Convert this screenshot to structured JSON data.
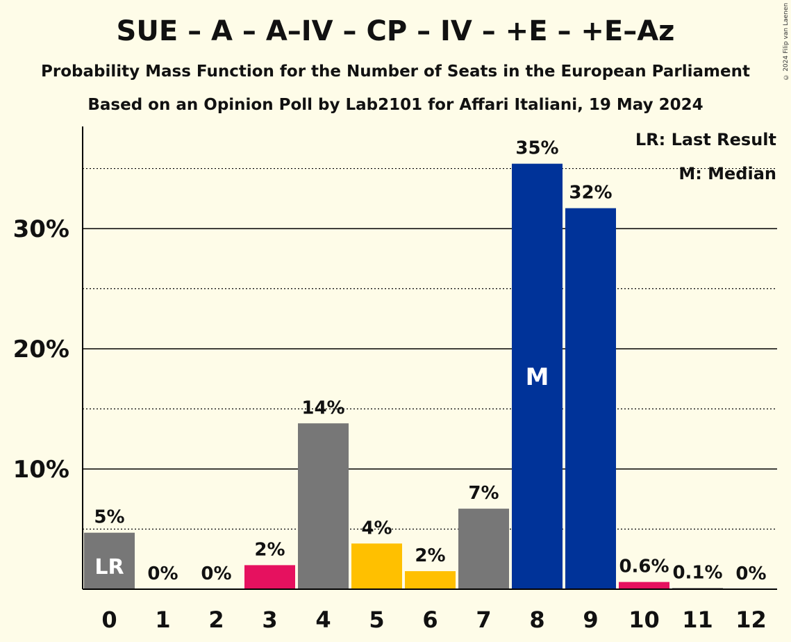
{
  "title": "SUE – A – A–IV – CP – IV – +E – +E–Az",
  "subtitle": "Probability Mass Function for the Number of Seats in the European Parliament",
  "subtitle2": "Based on an Opinion Poll by Lab2101 for Affari Italiani, 19 May 2024",
  "copyright": "© 2024 Filip van Laenen",
  "legend": {
    "lr": "LR: Last Result",
    "m": "M: Median"
  },
  "chart_data": {
    "type": "bar",
    "categories": [
      "0",
      "1",
      "2",
      "3",
      "4",
      "5",
      "6",
      "7",
      "8",
      "9",
      "10",
      "11",
      "12"
    ],
    "values": [
      4.7,
      0,
      0,
      2.0,
      13.8,
      3.8,
      1.5,
      6.7,
      35.4,
      31.7,
      0.6,
      0.1,
      0
    ],
    "labels": [
      "5%",
      "0%",
      "0%",
      "2%",
      "14%",
      "4%",
      "2%",
      "7%",
      "35%",
      "32%",
      "0.6%",
      "0.1%",
      "0%"
    ],
    "colors": [
      "#777777",
      "#777777",
      "#777777",
      "#e6115f",
      "#777777",
      "#ffc000",
      "#ffc000",
      "#777777",
      "#003399",
      "#003399",
      "#e6115f",
      "#777777",
      "#777777"
    ],
    "yticks": [
      10,
      20,
      30
    ],
    "ytick_labels": [
      "10%",
      "20%",
      "30%"
    ],
    "ylim": [
      0,
      38.5
    ],
    "last_result_index": 0,
    "last_result_label": "LR",
    "median_index": 8,
    "median_label": "M",
    "grid": true,
    "legend_position": "top-right"
  }
}
